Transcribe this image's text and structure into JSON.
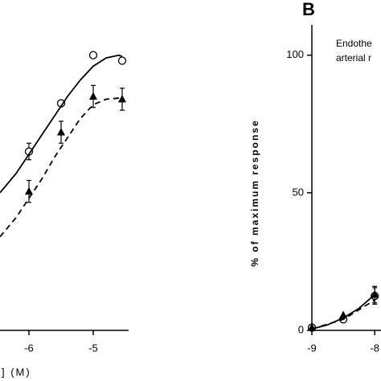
{
  "chart_data": [
    {
      "type": "scatter",
      "x_label": "] (M)",
      "xlim": [
        -6.45,
        -4.3
      ],
      "ylim": [
        0,
        111
      ],
      "xticks": [
        -6,
        -5
      ],
      "series": [
        {
          "marker": "circle",
          "color": "#000000",
          "x": [
            -6,
            -5.5,
            -5,
            -4.55
          ],
          "values": [
            65,
            82.5,
            100,
            98
          ],
          "errors": [
            3,
            null,
            null,
            null
          ]
        },
        {
          "marker": "triangle",
          "color": "#000000",
          "x": [
            -6,
            -5.5,
            -5,
            -4.55
          ],
          "values": [
            50.5,
            72,
            85,
            84
          ],
          "errors": [
            4,
            4,
            4,
            4
          ]
        },
        {
          "line": "solid",
          "color": "#000000",
          "x": [
            -6.45,
            -6.2,
            -6,
            -5.8,
            -5.6,
            -5.4,
            -5.2,
            -5,
            -4.8,
            -4.6,
            -4.55
          ],
          "values": [
            50,
            57,
            64,
            71,
            78,
            85,
            91,
            96,
            99,
            100,
            99.5
          ]
        },
        {
          "line": "dashed",
          "color": "#000000",
          "x": [
            -6.45,
            -6.2,
            -6,
            -5.8,
            -5.6,
            -5.4,
            -5.2,
            -5,
            -4.8,
            -4.55
          ],
          "values": [
            34,
            41,
            48,
            55,
            63,
            70,
            77,
            82,
            84,
            84.5
          ]
        }
      ]
    },
    {
      "type": "scatter",
      "title": "B",
      "annotation": [
        "Endothe",
        "arterial r"
      ],
      "y_label": "% of maximum response",
      "xlim": [
        -9,
        -7.9
      ],
      "ylim": [
        0,
        111
      ],
      "xticks": [
        -9,
        -8
      ],
      "yticks": [
        0,
        50,
        100
      ],
      "series": [
        {
          "marker": "circle",
          "color": "#000000",
          "x": [
            -9,
            -8.5,
            -8
          ],
          "values": [
            1,
            4,
            12.5
          ],
          "errors": [
            null,
            null,
            3
          ]
        },
        {
          "marker": "triangle",
          "color": "#000000",
          "x": [
            -9,
            -8.5,
            -8
          ],
          "values": [
            1,
            5.5,
            13
          ],
          "errors": [
            null,
            null,
            3
          ]
        },
        {
          "line": "solid",
          "color": "#000000",
          "x": [
            -9,
            -8.75,
            -8.5,
            -8.25,
            -8
          ],
          "values": [
            0.5,
            2,
            4.5,
            8,
            13
          ]
        },
        {
          "line": "dashed",
          "color": "#000000",
          "x": [
            -9,
            -8.5,
            -8
          ],
          "values": [
            0.5,
            4,
            11
          ]
        }
      ]
    }
  ]
}
